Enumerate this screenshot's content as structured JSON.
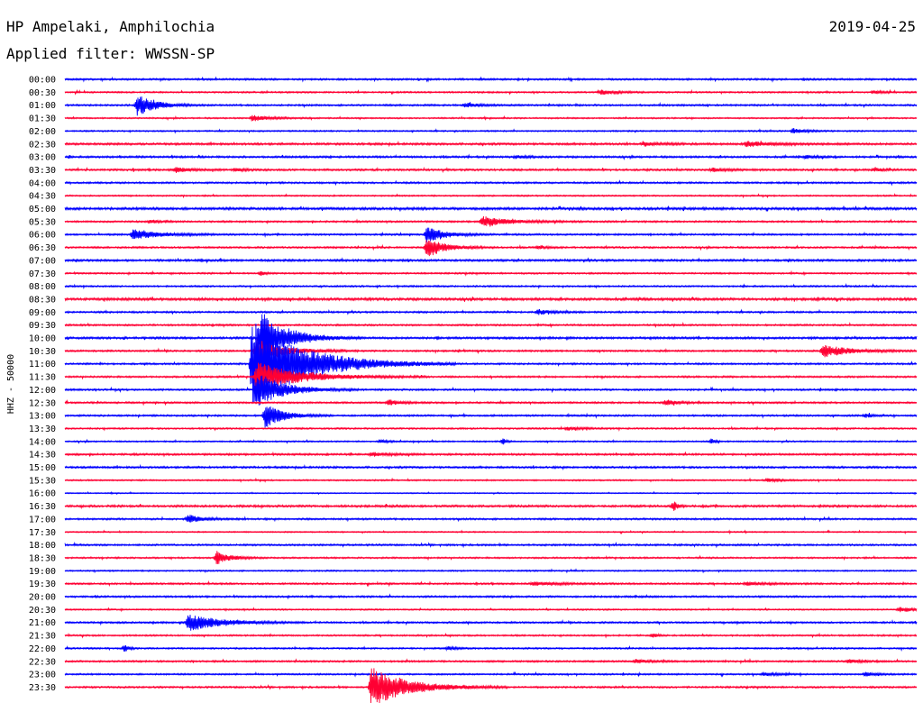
{
  "header": {
    "station": "HP Ampelaki, Amphilochia",
    "date": "2019-04-25",
    "filter": "Applied filter: WWSSN-SP"
  },
  "chart_data": {
    "type": "line",
    "title": "HP Ampelaki, Amphilochia",
    "subtitle": "Applied filter: WWSSN-SP",
    "ylabel": "HHZ - 50000",
    "colors": {
      "blue": "#0000ff",
      "red": "#ff0033"
    },
    "rows": [
      {
        "label": "00:00",
        "color": "blue",
        "noise": 1.0,
        "events": []
      },
      {
        "label": "00:30",
        "color": "red",
        "noise": 0.9,
        "events": [
          {
            "x": 0.63,
            "a": 3,
            "d": 0.015
          },
          {
            "x": 0.95,
            "a": 2,
            "d": 0.01
          }
        ]
      },
      {
        "label": "01:00",
        "color": "blue",
        "noise": 1.0,
        "events": [
          {
            "x": 0.085,
            "a": 12,
            "d": 0.02
          },
          {
            "x": 0.47,
            "a": 2.5,
            "d": 0.015
          }
        ]
      },
      {
        "label": "01:30",
        "color": "red",
        "noise": 0.8,
        "events": [
          {
            "x": 0.22,
            "a": 3.5,
            "d": 0.02
          }
        ]
      },
      {
        "label": "02:00",
        "color": "blue",
        "noise": 0.8,
        "events": [
          {
            "x": 0.855,
            "a": 3,
            "d": 0.015
          }
        ]
      },
      {
        "label": "02:30",
        "color": "red",
        "noise": 1.2,
        "events": [
          {
            "x": 0.68,
            "a": 2,
            "d": 0.02
          },
          {
            "x": 0.8,
            "a": 3,
            "d": 0.03
          }
        ]
      },
      {
        "label": "03:00",
        "color": "blue",
        "noise": 1.1,
        "events": [
          {
            "x": 0.53,
            "a": 2,
            "d": 0.01
          },
          {
            "x": 0.87,
            "a": 2,
            "d": 0.01
          }
        ]
      },
      {
        "label": "03:30",
        "color": "red",
        "noise": 1.1,
        "events": [
          {
            "x": 0.13,
            "a": 3,
            "d": 0.015
          },
          {
            "x": 0.2,
            "a": 2,
            "d": 0.01
          },
          {
            "x": 0.76,
            "a": 2,
            "d": 0.015
          },
          {
            "x": 0.95,
            "a": 2,
            "d": 0.01
          }
        ]
      },
      {
        "label": "04:00",
        "color": "blue",
        "noise": 1.0,
        "events": []
      },
      {
        "label": "04:30",
        "color": "red",
        "noise": 0.8,
        "events": []
      },
      {
        "label": "05:00",
        "color": "blue",
        "noise": 1.4,
        "events": []
      },
      {
        "label": "05:30",
        "color": "red",
        "noise": 1.0,
        "events": [
          {
            "x": 0.49,
            "a": 6,
            "d": 0.03
          },
          {
            "x": 0.1,
            "a": 2,
            "d": 0.01
          }
        ]
      },
      {
        "label": "06:00",
        "color": "blue",
        "noise": 1.0,
        "events": [
          {
            "x": 0.08,
            "a": 6,
            "d": 0.03
          },
          {
            "x": 0.425,
            "a": 9,
            "d": 0.02
          }
        ]
      },
      {
        "label": "06:30",
        "color": "red",
        "noise": 1.0,
        "events": [
          {
            "x": 0.425,
            "a": 11,
            "d": 0.02
          },
          {
            "x": 0.555,
            "a": 2,
            "d": 0.01
          }
        ]
      },
      {
        "label": "07:00",
        "color": "blue",
        "noise": 1.2,
        "events": []
      },
      {
        "label": "07:30",
        "color": "red",
        "noise": 0.9,
        "events": [
          {
            "x": 0.23,
            "a": 3,
            "d": 0.005
          }
        ]
      },
      {
        "label": "08:00",
        "color": "blue",
        "noise": 0.9,
        "events": []
      },
      {
        "label": "08:30",
        "color": "red",
        "noise": 1.4,
        "events": []
      },
      {
        "label": "09:00",
        "color": "blue",
        "noise": 1.0,
        "events": [
          {
            "x": 0.555,
            "a": 3,
            "d": 0.015
          }
        ]
      },
      {
        "label": "09:30",
        "color": "red",
        "noise": 1.0,
        "events": []
      },
      {
        "label": "10:00",
        "color": "blue",
        "noise": 1.2,
        "events": [
          {
            "x": 0.23,
            "a": 30,
            "d": 0.03
          }
        ]
      },
      {
        "label": "10:30",
        "color": "red",
        "noise": 1.0,
        "events": [
          {
            "x": 0.225,
            "a": 14,
            "d": 0.03
          },
          {
            "x": 0.89,
            "a": 7,
            "d": 0.03
          }
        ]
      },
      {
        "label": "11:00",
        "color": "blue",
        "noise": 1.0,
        "events": [
          {
            "x": 0.22,
            "a": 48,
            "d": 0.06
          }
        ]
      },
      {
        "label": "11:30",
        "color": "red",
        "noise": 1.0,
        "events": [
          {
            "x": 0.225,
            "a": 16,
            "d": 0.05
          }
        ]
      },
      {
        "label": "12:00",
        "color": "blue",
        "noise": 1.0,
        "events": [
          {
            "x": 0.225,
            "a": 20,
            "d": 0.03
          }
        ]
      },
      {
        "label": "12:30",
        "color": "red",
        "noise": 1.0,
        "events": [
          {
            "x": 0.38,
            "a": 3,
            "d": 0.015
          },
          {
            "x": 0.705,
            "a": 3,
            "d": 0.015
          }
        ]
      },
      {
        "label": "13:00",
        "color": "blue",
        "noise": 1.0,
        "events": [
          {
            "x": 0.235,
            "a": 14,
            "d": 0.02
          },
          {
            "x": 0.94,
            "a": 2,
            "d": 0.01
          }
        ]
      },
      {
        "label": "13:30",
        "color": "red",
        "noise": 0.9,
        "events": [
          {
            "x": 0.59,
            "a": 2,
            "d": 0.015
          }
        ]
      },
      {
        "label": "14:00",
        "color": "blue",
        "noise": 0.8,
        "events": [
          {
            "x": 0.515,
            "a": 4,
            "d": 0.003
          },
          {
            "x": 0.76,
            "a": 4,
            "d": 0.003
          },
          {
            "x": 0.37,
            "a": 2,
            "d": 0.01
          }
        ]
      },
      {
        "label": "14:30",
        "color": "red",
        "noise": 1.1,
        "events": [
          {
            "x": 0.36,
            "a": 2,
            "d": 0.02
          }
        ]
      },
      {
        "label": "15:00",
        "color": "blue",
        "noise": 1.1,
        "events": []
      },
      {
        "label": "15:30",
        "color": "red",
        "noise": 0.8,
        "events": [
          {
            "x": 0.825,
            "a": 2,
            "d": 0.015
          }
        ]
      },
      {
        "label": "16:00",
        "color": "blue",
        "noise": 0.6,
        "events": []
      },
      {
        "label": "16:30",
        "color": "red",
        "noise": 1.2,
        "events": [
          {
            "x": 0.715,
            "a": 6,
            "d": 0.004
          }
        ]
      },
      {
        "label": "17:00",
        "color": "blue",
        "noise": 1.0,
        "events": [
          {
            "x": 0.145,
            "a": 5,
            "d": 0.015
          }
        ]
      },
      {
        "label": "17:30",
        "color": "red",
        "noise": 0.7,
        "events": []
      },
      {
        "label": "18:00",
        "color": "blue",
        "noise": 1.0,
        "events": []
      },
      {
        "label": "18:30",
        "color": "red",
        "noise": 0.9,
        "events": [
          {
            "x": 0.178,
            "a": 8,
            "d": 0.015
          }
        ]
      },
      {
        "label": "19:00",
        "color": "blue",
        "noise": 0.8,
        "events": []
      },
      {
        "label": "19:30",
        "color": "red",
        "noise": 1.0,
        "events": [
          {
            "x": 0.55,
            "a": 2,
            "d": 0.03
          },
          {
            "x": 0.8,
            "a": 2,
            "d": 0.02
          }
        ]
      },
      {
        "label": "20:00",
        "color": "blue",
        "noise": 1.0,
        "events": []
      },
      {
        "label": "20:30",
        "color": "red",
        "noise": 0.8,
        "events": [
          {
            "x": 0.98,
            "a": 3,
            "d": 0.015
          }
        ]
      },
      {
        "label": "21:00",
        "color": "blue",
        "noise": 1.0,
        "events": [
          {
            "x": 0.145,
            "a": 10,
            "d": 0.035
          }
        ]
      },
      {
        "label": "21:30",
        "color": "red",
        "noise": 0.9,
        "events": [
          {
            "x": 0.69,
            "a": 3,
            "d": 0.005
          }
        ]
      },
      {
        "label": "22:00",
        "color": "blue",
        "noise": 0.9,
        "events": [
          {
            "x": 0.07,
            "a": 4,
            "d": 0.005
          },
          {
            "x": 0.45,
            "a": 2,
            "d": 0.01
          }
        ]
      },
      {
        "label": "22:30",
        "color": "red",
        "noise": 1.0,
        "events": [
          {
            "x": 0.67,
            "a": 2,
            "d": 0.015
          },
          {
            "x": 0.92,
            "a": 2,
            "d": 0.015
          }
        ]
      },
      {
        "label": "23:00",
        "color": "blue",
        "noise": 0.9,
        "events": [
          {
            "x": 0.82,
            "a": 2,
            "d": 0.015
          },
          {
            "x": 0.94,
            "a": 2,
            "d": 0.015
          }
        ]
      },
      {
        "label": "23:30",
        "color": "red",
        "noise": 1.0,
        "events": [
          {
            "x": 0.36,
            "a": 22,
            "d": 0.04
          }
        ]
      }
    ]
  }
}
